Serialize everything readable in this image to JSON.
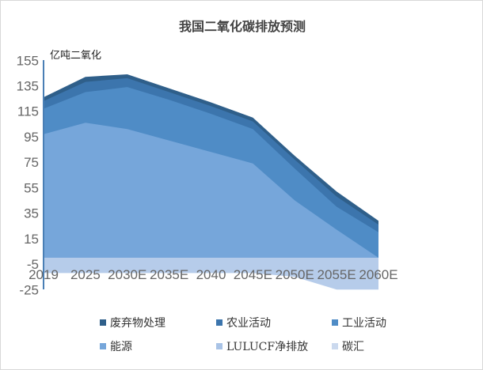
{
  "chart_data": {
    "type": "area",
    "stacked": true,
    "title": "我国二氧化碳排放预测",
    "ylabel": "亿吨二氧化",
    "xlabel": "",
    "categories": [
      "2019",
      "2025",
      "2030E",
      "2035E",
      "2040",
      "2045E",
      "2050E",
      "2055E",
      "2060E"
    ],
    "ylim": [
      -25,
      155
    ],
    "yticks": [
      155,
      135,
      115,
      95,
      75,
      55,
      35,
      15,
      -5,
      -25
    ],
    "grid": false,
    "legend_position": "bottom",
    "series": [
      {
        "name": "废弃物处理",
        "color": "#2f5f8a",
        "values": [
          3,
          4,
          3,
          3,
          3,
          3,
          3,
          4,
          3
        ]
      },
      {
        "name": "农业活动",
        "color": "#3c75ad",
        "values": [
          6,
          8,
          7,
          6,
          6,
          6,
          7,
          8,
          6
        ]
      },
      {
        "name": "工业活动",
        "color": "#4f8cc6",
        "values": [
          20,
          24,
          33,
          32,
          30,
          27,
          25,
          18,
          20
        ]
      },
      {
        "name": "能源",
        "color": "#76a6da",
        "values": [
          97,
          106,
          101,
          92,
          83,
          74,
          45,
          22,
          0
        ]
      },
      {
        "name": "LULUCF净排放",
        "color": "#a9c3e6",
        "values": [
          -12,
          -12,
          -12,
          -12,
          -12,
          -12,
          -15,
          -25,
          -25
        ]
      },
      {
        "name": "碳汇",
        "color": "#cbd9ee",
        "values": [
          0,
          0,
          0,
          0,
          0,
          0,
          0,
          0,
          0
        ]
      }
    ]
  }
}
